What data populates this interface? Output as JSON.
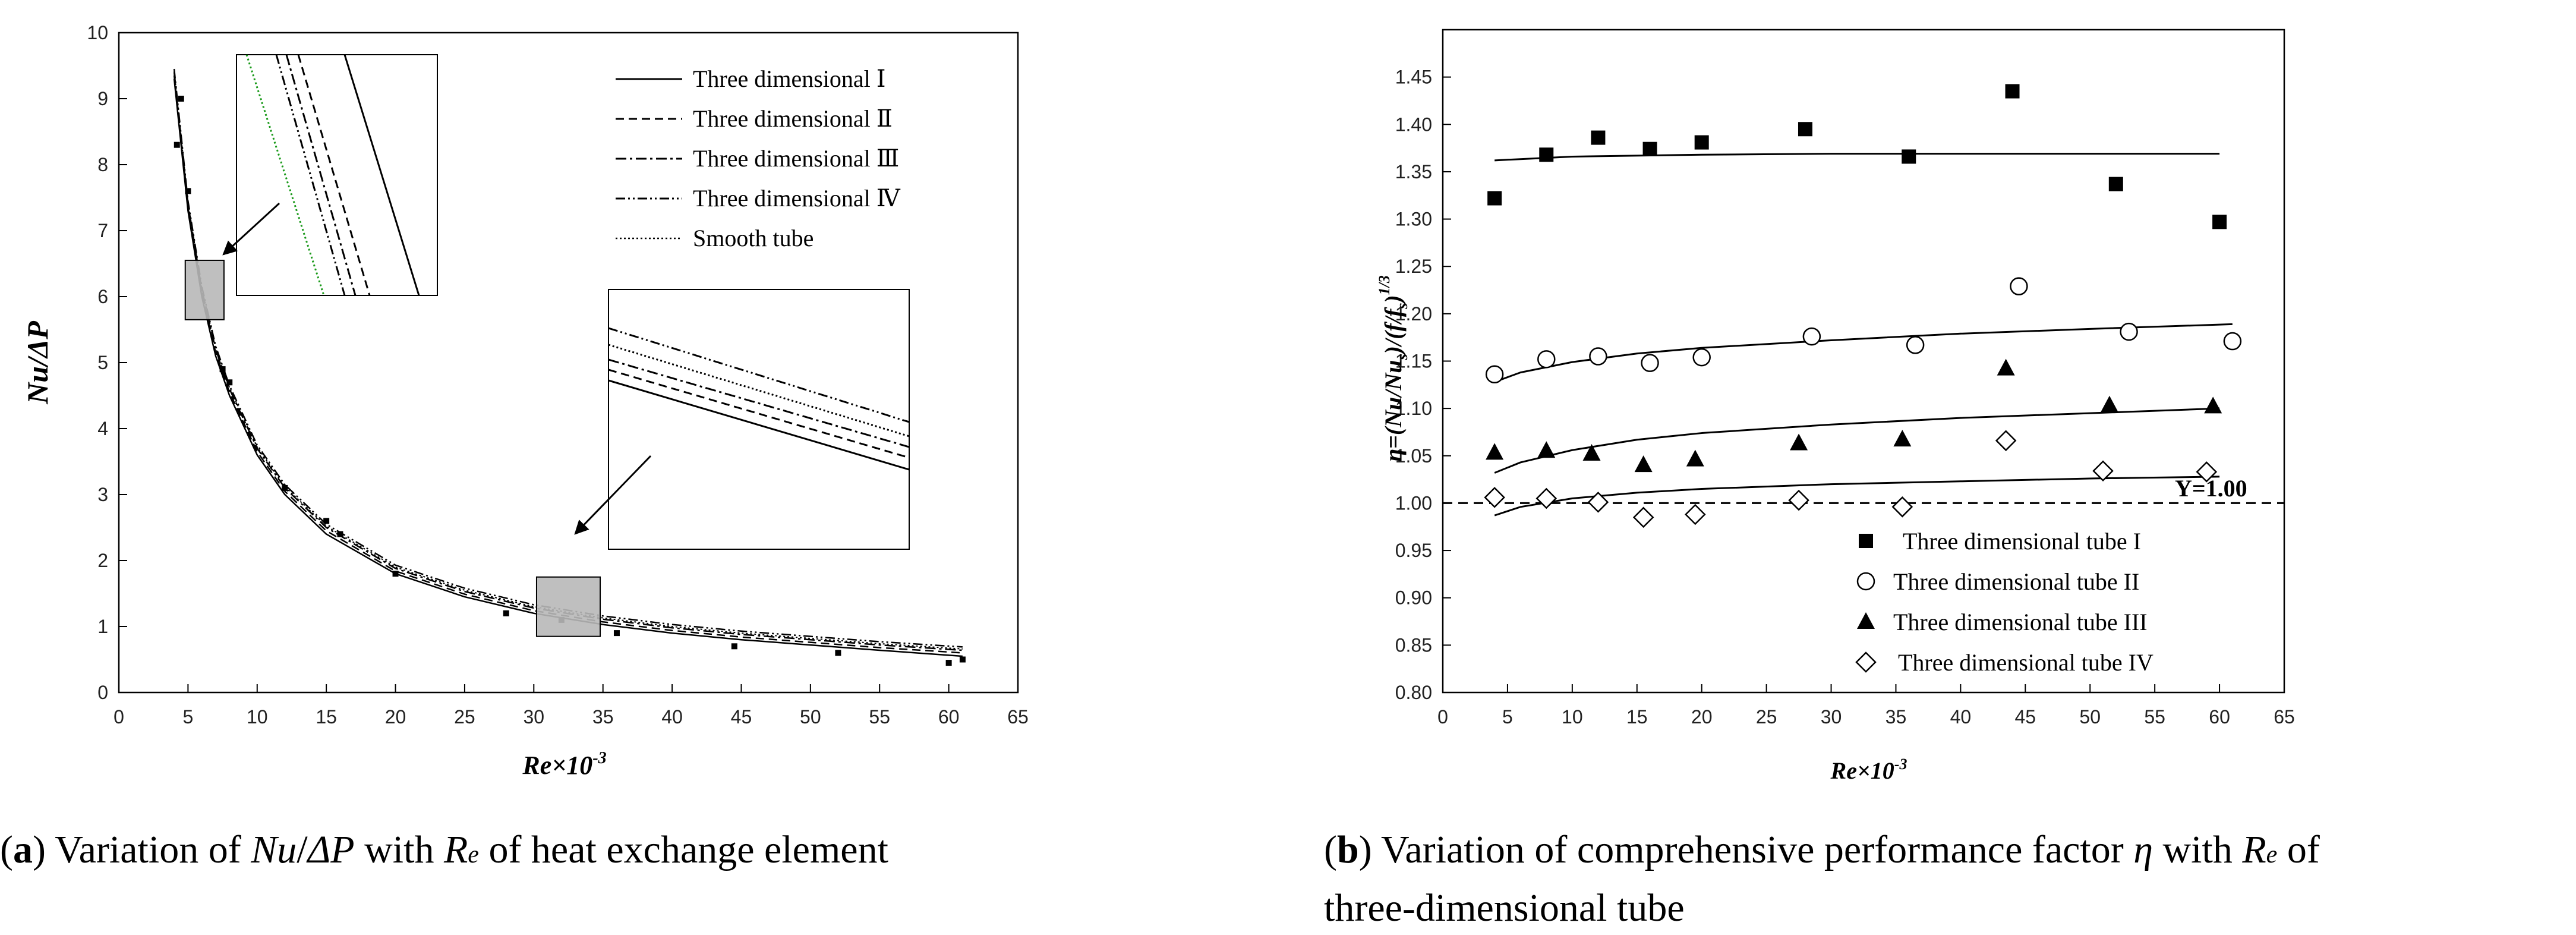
{
  "panel_a": {
    "caption": {
      "label": "a",
      "text1": " Variation of ",
      "q1": "Nu",
      "slash": "/",
      "q2": "ΔP",
      "text2": " with ",
      "q3": "R",
      "q3sub": "e",
      "text3": " of heat exchange element"
    },
    "y_axis_label": "Nu/ΔP",
    "x_axis_label": "Re×10",
    "x_axis_exp": "-3",
    "legend": [
      "Three dimensional Ⅰ",
      "Three dimensional Ⅱ",
      "Three dimensional Ⅲ",
      "Three dimensional Ⅳ",
      "Smooth tube"
    ]
  },
  "panel_b": {
    "caption": {
      "label": "b",
      "text1": " Variation of comprehensive performance factor ",
      "q1": "η",
      "text2": " with ",
      "q2": "R",
      "q2sub": "e",
      "text3": " of",
      "line2": "three-dimensional tube"
    },
    "y_axis_label": "η=(Nu/Nu",
    "y_axis_label_sub": "s",
    "y_axis_label_mid": ")/(f/f",
    "y_axis_label_sub2": "s",
    "y_axis_label_end": ")",
    "y_axis_label_exp": "1/3",
    "x_axis_label": "Re×10",
    "x_axis_exp": "-3",
    "reference_label": "Y=1.00",
    "legend": [
      "Three dimensional tube I",
      "Three dimensional tube II",
      "Three dimensional tube III",
      "Three dimensional tube IV"
    ]
  },
  "chart_data": [
    {
      "type": "line",
      "title": "Variation of Nu/ΔP with Re of heat exchange element",
      "xlabel": "Re×10-3",
      "ylabel": "Nu/ΔP",
      "xlim": [
        0,
        65
      ],
      "ylim": [
        0,
        10
      ],
      "xticks": [
        0,
        5,
        10,
        15,
        20,
        25,
        30,
        35,
        40,
        45,
        50,
        55,
        60,
        65
      ],
      "yticks": [
        0,
        1,
        2,
        3,
        4,
        5,
        6,
        7,
        8,
        9,
        10
      ],
      "series": [
        {
          "name": "Three dimensional Ⅰ",
          "style": "solid",
          "x": [
            4,
            5,
            6,
            7,
            8,
            10,
            12,
            15,
            20,
            25,
            30,
            35,
            40,
            45,
            50,
            55,
            61
          ],
          "y": [
            9.3,
            7.3,
            6.0,
            5.1,
            4.5,
            3.6,
            3.0,
            2.4,
            1.8,
            1.45,
            1.2,
            1.03,
            0.9,
            0.8,
            0.72,
            0.64,
            0.55
          ]
        },
        {
          "name": "Three dimensional Ⅱ",
          "style": "dashed",
          "x": [
            4,
            5,
            6,
            7,
            8,
            10,
            12,
            15,
            20,
            25,
            30,
            35,
            40,
            45,
            50,
            55,
            61
          ],
          "y": [
            9.35,
            7.35,
            6.05,
            5.15,
            4.55,
            3.65,
            3.05,
            2.45,
            1.84,
            1.49,
            1.24,
            1.07,
            0.94,
            0.84,
            0.76,
            0.68,
            0.6
          ]
        },
        {
          "name": "Three dimensional Ⅲ",
          "style": "dashdot",
          "x": [
            4,
            5,
            6,
            7,
            8,
            10,
            12,
            15,
            20,
            25,
            30,
            35,
            40,
            45,
            50,
            55,
            61
          ],
          "y": [
            9.4,
            7.4,
            6.1,
            5.2,
            4.6,
            3.7,
            3.1,
            2.5,
            1.88,
            1.53,
            1.28,
            1.11,
            0.98,
            0.88,
            0.8,
            0.72,
            0.64
          ]
        },
        {
          "name": "Three dimensional Ⅳ",
          "style": "dashdotdot",
          "x": [
            4,
            5,
            6,
            7,
            8,
            10,
            12,
            15,
            20,
            25,
            30,
            35,
            40,
            45,
            50,
            55,
            61
          ],
          "y": [
            9.45,
            7.45,
            6.15,
            5.25,
            4.65,
            3.75,
            3.15,
            2.55,
            1.93,
            1.58,
            1.33,
            1.16,
            1.03,
            0.93,
            0.85,
            0.77,
            0.69
          ]
        },
        {
          "name": "Smooth tube",
          "style": "dotted",
          "x": [
            4,
            5,
            6,
            7,
            8,
            10,
            12,
            15,
            20,
            25,
            30,
            35,
            40,
            45,
            50,
            55,
            61
          ],
          "y": [
            9.42,
            7.42,
            6.12,
            5.22,
            4.62,
            3.72,
            3.12,
            2.52,
            1.9,
            1.55,
            1.3,
            1.13,
            1.0,
            0.9,
            0.82,
            0.74,
            0.66
          ]
        }
      ],
      "scatter": {
        "x": [
          4.2,
          4.5,
          5,
          7.5,
          8,
          12,
          15,
          16,
          20,
          28,
          32,
          36,
          44.5,
          52,
          60,
          61
        ],
        "y": [
          8.3,
          9.0,
          7.6,
          4.9,
          4.7,
          3.1,
          2.6,
          2.4,
          1.8,
          1.2,
          1.1,
          0.9,
          0.7,
          0.6,
          0.45,
          0.5
        ]
      },
      "zoom_regions": [
        {
          "xlim": [
            4.8,
            7.6
          ],
          "ylim": [
            5.65,
            6.55
          ]
        },
        {
          "xlim": [
            30.2,
            34.8
          ],
          "ylim": [
            0.85,
            1.75
          ]
        }
      ]
    },
    {
      "type": "scatter",
      "title": "Variation of comprehensive performance factor η with Re of three-dimensional tube",
      "xlabel": "Re×10-3",
      "ylabel": "η=(Nu/Nus)/(f/fs)1/3",
      "xlim": [
        0,
        65
      ],
      "ylim": [
        0.8,
        1.5
      ],
      "xticks": [
        0,
        5,
        10,
        15,
        20,
        25,
        30,
        35,
        40,
        45,
        50,
        55,
        60,
        65
      ],
      "yticks": [
        0.8,
        0.85,
        0.9,
        0.95,
        1.0,
        1.05,
        1.1,
        1.15,
        1.2,
        1.25,
        1.3,
        1.35,
        1.4,
        1.45
      ],
      "reference_line": {
        "y": 1.0,
        "label": "Y=1.00"
      },
      "series": [
        {
          "name": "Three dimensional tube I",
          "marker": "filled-square",
          "x": [
            4,
            8,
            12,
            16,
            20,
            28,
            36,
            44,
            52,
            60
          ],
          "y": [
            1.322,
            1.368,
            1.386,
            1.374,
            1.381,
            1.395,
            1.366,
            1.435,
            1.337,
            1.297
          ],
          "fit_x": [
            4,
            10,
            20,
            30,
            40,
            50,
            60
          ],
          "fit_y": [
            1.362,
            1.366,
            1.368,
            1.369,
            1.369,
            1.369,
            1.369
          ]
        },
        {
          "name": "Three dimensional tube II",
          "marker": "open-circle",
          "x": [
            4,
            8,
            12,
            16,
            20,
            28.5,
            36.5,
            44.5,
            53,
            61
          ],
          "y": [
            1.136,
            1.152,
            1.155,
            1.148,
            1.154,
            1.176,
            1.167,
            1.229,
            1.181,
            1.171
          ],
          "fit_x": [
            4,
            6,
            10,
            15,
            20,
            30,
            40,
            50,
            61
          ],
          "fit_y": [
            1.128,
            1.138,
            1.149,
            1.158,
            1.164,
            1.172,
            1.179,
            1.184,
            1.189
          ]
        },
        {
          "name": "Three dimensional tube III",
          "marker": "filled-triangle",
          "x": [
            4,
            8,
            11.5,
            15.5,
            19.5,
            27.5,
            35.5,
            43.5,
            51.5,
            59.5
          ],
          "y": [
            1.054,
            1.056,
            1.053,
            1.041,
            1.047,
            1.064,
            1.068,
            1.143,
            1.104,
            1.103
          ],
          "fit_x": [
            4,
            6,
            10,
            15,
            20,
            30,
            40,
            50,
            60
          ],
          "fit_y": [
            1.032,
            1.043,
            1.056,
            1.067,
            1.074,
            1.083,
            1.09,
            1.095,
            1.1
          ]
        },
        {
          "name": "Three dimensional tube IV",
          "marker": "open-diamond",
          "x": [
            4,
            8,
            12,
            15.5,
            19.5,
            27.5,
            35.5,
            43.5,
            51,
            59
          ],
          "y": [
            1.006,
            1.005,
            1.001,
            0.985,
            0.988,
            1.003,
            0.996,
            1.066,
            1.034,
            1.033
          ],
          "fit_x": [
            4,
            6,
            10,
            15,
            20,
            30,
            40,
            50,
            60
          ],
          "fit_y": [
            0.987,
            0.996,
            1.005,
            1.011,
            1.015,
            1.02,
            1.023,
            1.026,
            1.028
          ]
        }
      ]
    }
  ]
}
